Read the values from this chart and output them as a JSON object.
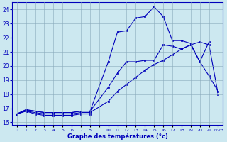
{
  "xlabel": "Graphe des températures (°c)",
  "background_color": "#cce8f0",
  "grid_color": "#88aabb",
  "line_color": "#0000bb",
  "tick_color": "#0000bb",
  "x_labels": [
    "0",
    "1",
    "2",
    "3",
    "4",
    "5",
    "6",
    "7",
    "8",
    "",
    "10",
    "11",
    "12",
    "13",
    "14",
    "15",
    "16",
    "17",
    "18",
    "19",
    "20",
    "21",
    "2223"
  ],
  "x_positions": [
    0,
    1,
    2,
    3,
    4,
    5,
    6,
    7,
    8,
    9,
    10,
    11,
    12,
    13,
    14,
    15,
    16,
    17,
    18,
    19,
    20,
    21,
    22
  ],
  "line1_x": [
    0,
    1,
    2,
    3,
    4,
    5,
    6,
    7,
    8
  ],
  "line1_y": [
    16.6,
    16.8,
    16.6,
    16.5,
    16.5,
    16.5,
    16.5,
    16.6,
    16.6
  ],
  "line2_x": [
    0,
    1,
    2,
    3,
    4,
    5,
    6,
    7,
    8,
    10,
    11,
    12,
    13,
    14,
    15,
    16,
    17,
    18,
    19,
    20,
    21,
    22
  ],
  "line2_y": [
    16.6,
    16.8,
    16.7,
    16.6,
    16.6,
    16.6,
    16.6,
    16.7,
    16.7,
    17.5,
    18.2,
    18.7,
    19.2,
    19.7,
    20.1,
    20.4,
    20.8,
    21.2,
    21.5,
    21.7,
    21.5,
    18.0
  ],
  "line3_x": [
    0,
    1,
    2,
    3,
    4,
    5,
    6,
    7,
    8,
    10,
    11,
    12,
    13,
    14,
    15,
    16,
    17,
    18,
    19,
    20,
    21,
    22
  ],
  "line3_y": [
    16.6,
    16.9,
    16.8,
    16.7,
    16.7,
    16.7,
    16.7,
    16.8,
    16.8,
    18.5,
    19.5,
    20.3,
    20.3,
    20.4,
    20.4,
    21.5,
    21.4,
    21.2,
    21.5,
    20.3,
    19.3,
    18.2
  ],
  "line4_x": [
    0,
    1,
    2,
    3,
    4,
    5,
    6,
    7,
    8,
    10,
    11,
    12,
    13,
    14,
    15,
    16,
    17,
    18,
    19,
    20,
    21
  ],
  "line4_y": [
    16.6,
    16.9,
    16.8,
    16.7,
    16.7,
    16.7,
    16.7,
    16.8,
    16.8,
    20.3,
    22.4,
    22.5,
    23.4,
    23.5,
    24.2,
    23.5,
    21.8,
    21.8,
    21.6,
    20.3,
    21.7
  ],
  "ylim": [
    15.8,
    24.5
  ],
  "yticks": [
    16,
    17,
    18,
    19,
    20,
    21,
    22,
    23,
    24
  ],
  "xlim": [
    -0.5,
    22.5
  ]
}
